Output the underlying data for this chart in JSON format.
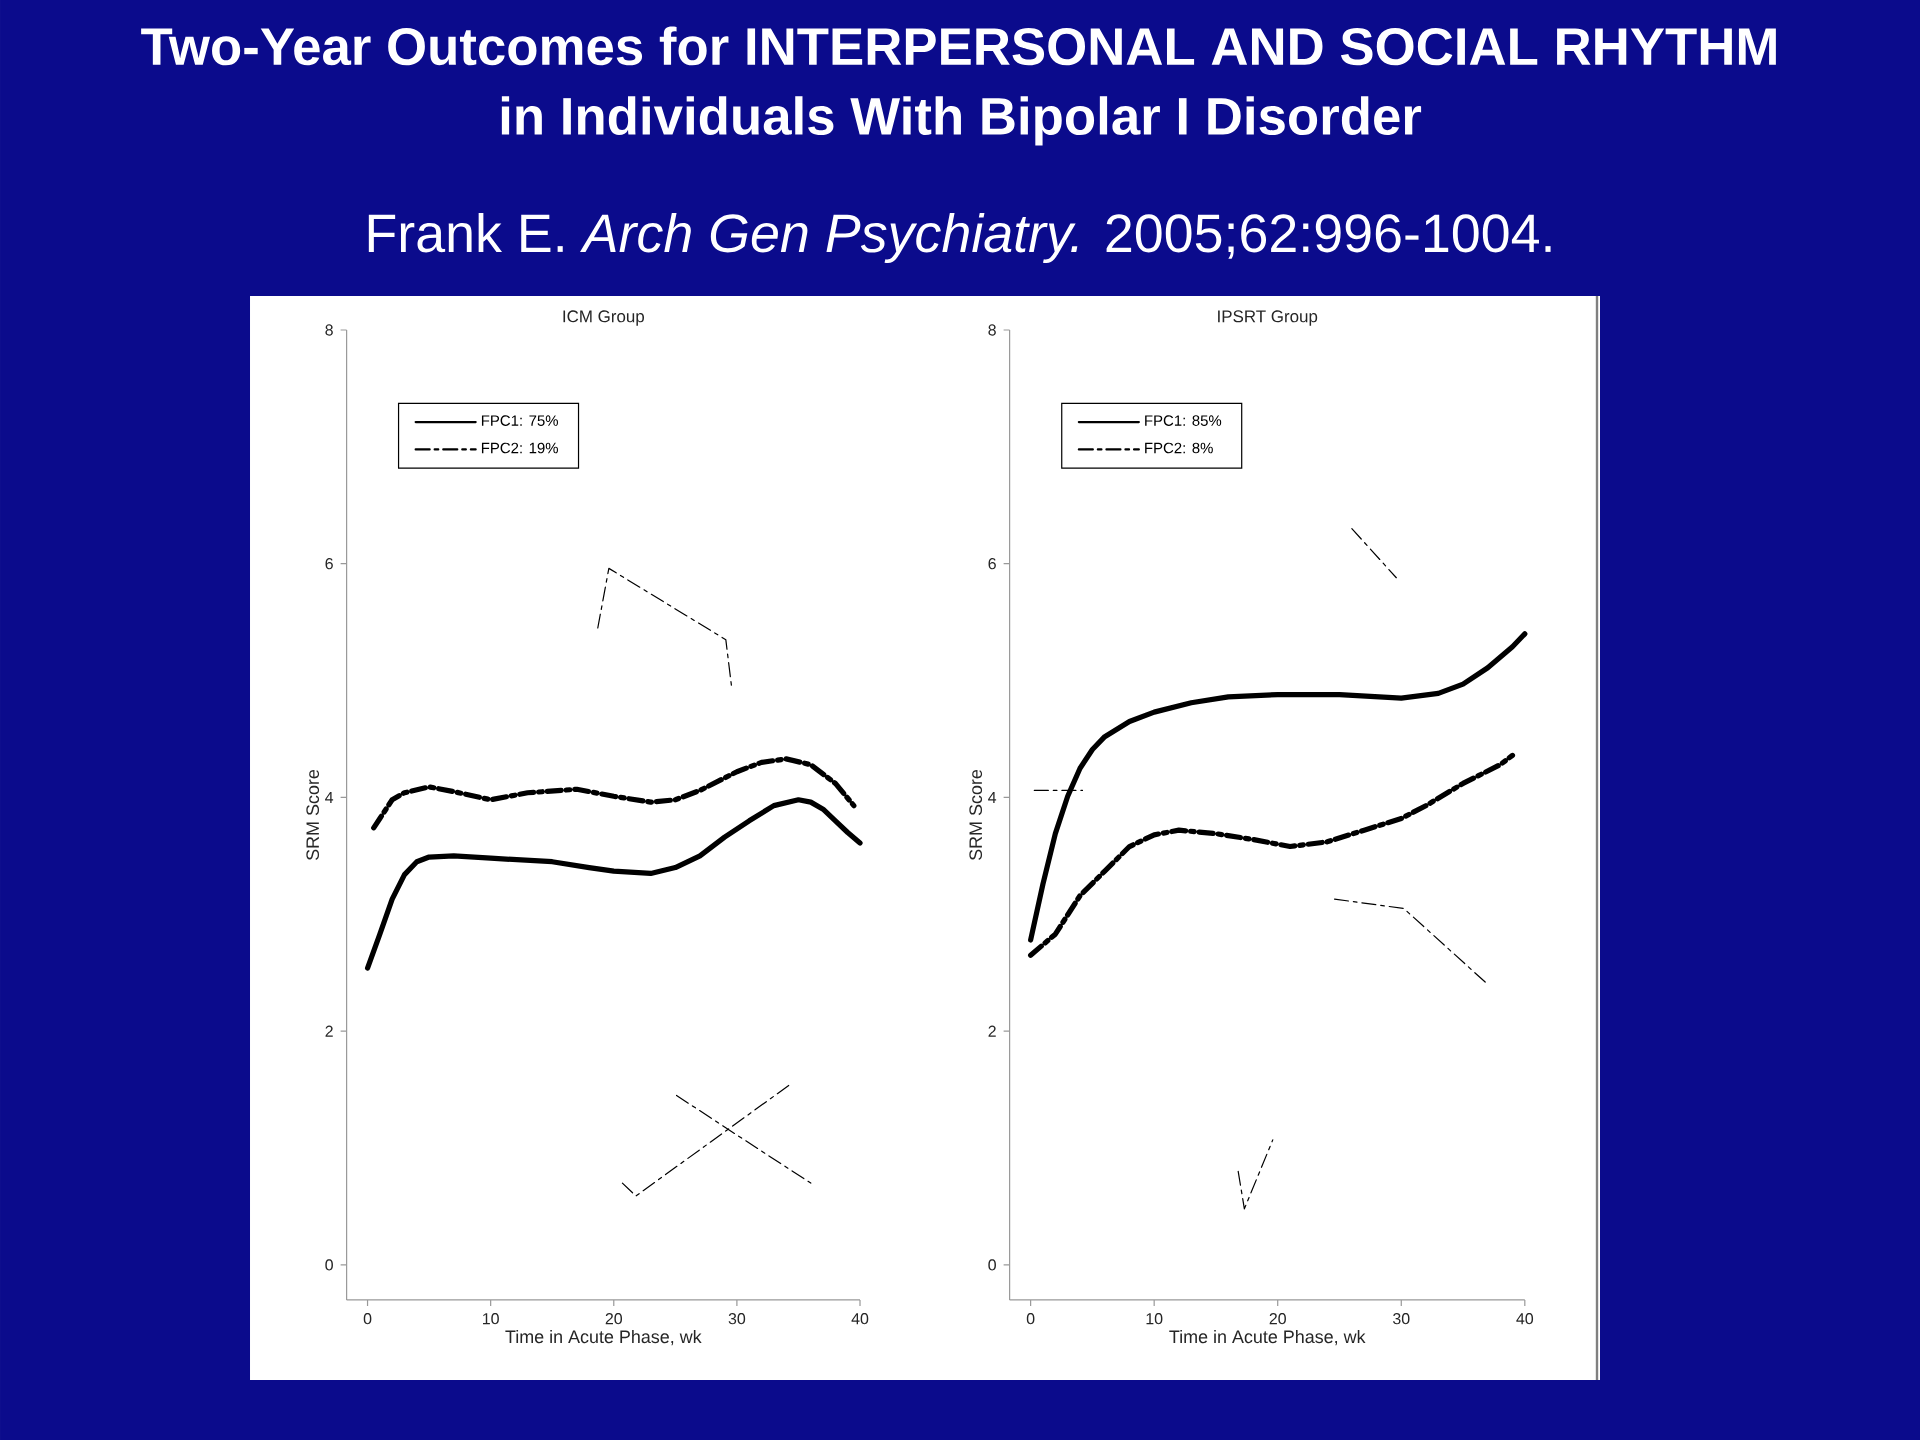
{
  "chart_data": [
    {
      "type": "other",
      "title": "Two-Year Outcomes for INTERPERSONAL AND SOCIAL RHYTHM in Individuals With Bipolar I Disorder",
      "subtitle": "Frank E. *Arch Gen Psychiatry.* 2005;62:996-1004."
    },
    {
      "type": "line",
      "title": "ICM Group",
      "xlabel": "Time in Acute Phase, wk",
      "ylabel": "SRM Score",
      "xlim": [
        -1.7,
        40
      ],
      "ylim": [
        -0.3,
        8
      ],
      "xticks": [
        0,
        10,
        20,
        30,
        40
      ],
      "yticks": [
        0,
        2,
        4,
        6,
        8
      ],
      "legend": "top left",
      "series": [
        {
          "name": "FPC1: 75%",
          "color": "#000000",
          "line_style": "solid",
          "x": [
            0,
            1,
            2,
            3,
            4,
            5,
            7,
            10,
            15,
            18,
            20,
            23,
            25,
            27,
            29,
            31,
            33,
            35,
            36,
            37,
            38,
            39,
            40
          ],
          "values": [
            2.54,
            2.83,
            3.13,
            3.34,
            3.45,
            3.49,
            3.5,
            3.48,
            3.45,
            3.4,
            3.37,
            3.35,
            3.4,
            3.5,
            3.66,
            3.8,
            3.93,
            3.98,
            3.96,
            3.9,
            3.8,
            3.7,
            3.61
          ]
        },
        {
          "name": "FPC2: 19%",
          "color": "#000000",
          "line_style": "dashdot",
          "x": [
            0.5,
            1,
            2,
            3,
            5,
            7,
            10,
            13,
            17,
            20,
            23,
            25,
            27,
            30,
            32,
            34,
            36,
            38,
            39.5
          ],
          "values": [
            3.74,
            3.82,
            3.98,
            4.04,
            4.09,
            4.05,
            3.98,
            4.04,
            4.07,
            4.01,
            3.96,
            3.98,
            4.06,
            4.22,
            4.3,
            4.33,
            4.28,
            4.12,
            3.93
          ]
        },
        {
          "color": "#000000",
          "line_style": "dashdot",
          "x": [
            18.7,
            19.6,
            29.1,
            29.6
          ],
          "values": [
            5.45,
            5.96,
            5.35,
            4.92
          ]
        },
        {
          "color": "#000000",
          "line_style": "dashdot",
          "x": [
            20.7,
            21.8,
            34.4
          ],
          "values": [
            0.7,
            0.59,
            1.55
          ]
        },
        {
          "color": "#000000",
          "line_style": "dashdot",
          "x": [
            25.1,
            29,
            36
          ],
          "values": [
            1.45,
            1.18,
            0.7
          ]
        }
      ]
    },
    {
      "type": "line",
      "title": "IPSRT Group",
      "xlabel": "Time in Acute Phase, wk",
      "ylabel": "SRM Score",
      "xlim": [
        -1.7,
        40
      ],
      "ylim": [
        -0.3,
        8
      ],
      "xticks": [
        0,
        10,
        20,
        30,
        40
      ],
      "yticks": [
        0,
        2,
        4,
        6,
        8
      ],
      "legend": "top left",
      "series": [
        {
          "name": "FPC1: 85%",
          "color": "#000000",
          "line_style": "solid",
          "x": [
            0,
            1,
            2,
            3,
            4,
            5,
            6,
            8,
            10,
            13,
            16,
            20,
            25,
            30,
            33,
            35,
            37,
            39,
            40
          ],
          "values": [
            2.78,
            3.26,
            3.69,
            4.01,
            4.25,
            4.41,
            4.52,
            4.65,
            4.73,
            4.81,
            4.86,
            4.88,
            4.88,
            4.85,
            4.89,
            4.97,
            5.11,
            5.29,
            5.4
          ]
        },
        {
          "name": "FPC2: 8%",
          "color": "#000000",
          "line_style": "dashdot",
          "x": [
            0,
            2,
            4,
            6,
            8,
            10,
            12,
            15,
            18,
            21,
            24,
            27,
            30,
            32,
            35,
            38,
            39
          ],
          "values": [
            2.65,
            2.83,
            3.16,
            3.37,
            3.58,
            3.68,
            3.72,
            3.69,
            3.64,
            3.58,
            3.62,
            3.72,
            3.82,
            3.93,
            4.12,
            4.28,
            4.36
          ]
        },
        {
          "color": "#000000",
          "line_style": "dashdot",
          "x": [
            0.3,
            4.2
          ],
          "values": [
            4.06,
            4.06
          ]
        },
        {
          "color": "#000000",
          "line_style": "dashdot",
          "x": [
            16.8,
            17.3,
            19.6
          ],
          "values": [
            0.8,
            0.48,
            1.07
          ]
        },
        {
          "color": "#000000",
          "line_style": "dashdot",
          "x": [
            26,
            29.6
          ],
          "values": [
            6.3,
            5.88
          ]
        },
        {
          "color": "#000000",
          "line_style": "dashdot",
          "x": [
            24.6,
            30.2,
            36.9
          ],
          "values": [
            3.13,
            3.05,
            2.41
          ]
        }
      ]
    }
  ]
}
